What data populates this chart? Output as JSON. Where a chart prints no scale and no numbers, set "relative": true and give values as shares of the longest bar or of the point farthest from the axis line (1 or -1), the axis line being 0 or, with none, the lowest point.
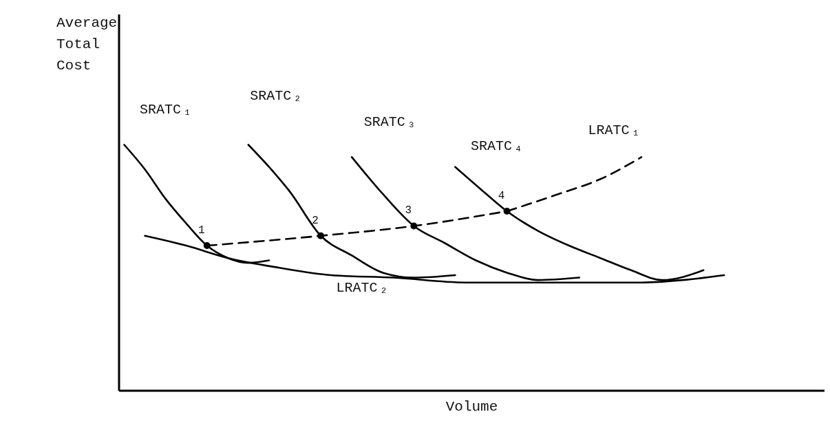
{
  "chart_data": {
    "type": "line",
    "relative": true,
    "xlabel": "Volume",
    "ylabel": "Average Total Cost",
    "grid": false,
    "legend": false,
    "marker": "none",
    "line_style": "solid",
    "categories": [
      null,
      null,
      null,
      null,
      null,
      null,
      null,
      null,
      null,
      null,
      null,
      null,
      null,
      null,
      null,
      null,
      null,
      null,
      null,
      null,
      null,
      null,
      null,
      null,
      null,
      null,
      null,
      null,
      null,
      null,
      null,
      null,
      null,
      null,
      null,
      null,
      null,
      null,
      null,
      null,
      null,
      null,
      null,
      null,
      null,
      null,
      null,
      null,
      null,
      null,
      null,
      null,
      null,
      null,
      null,
      null,
      null,
      null,
      null
    ],
    "series": [
      {
        "name": "SRATC₁",
        "color": "#000000",
        "values": [
          1.0,
          null,
          0.9,
          null,
          0.78,
          null,
          0.68,
          null,
          0.59,
          null,
          0.54,
          null,
          0.52,
          null,
          0.53,
          null,
          null,
          null,
          null,
          null,
          null,
          null,
          null,
          null,
          null,
          null,
          null,
          null,
          null,
          null,
          null,
          null,
          null,
          null,
          null,
          null,
          null,
          null,
          null,
          null,
          null,
          null,
          null,
          null,
          null,
          null,
          null,
          null,
          null,
          null,
          null,
          null,
          null,
          null,
          null,
          null,
          null,
          null,
          null
        ]
      },
      {
        "name": "SRATC₂",
        "color": "#000000",
        "values": [
          null,
          null,
          null,
          null,
          null,
          null,
          null,
          null,
          null,
          null,
          null,
          null,
          1.0,
          null,
          0.91,
          null,
          0.81,
          null,
          null,
          0.63,
          null,
          null,
          0.55,
          null,
          null,
          0.48,
          null,
          null,
          0.46,
          null,
          null,
          null,
          0.47,
          null,
          null,
          null,
          null,
          null,
          null,
          null,
          null,
          null,
          null,
          null,
          null,
          null,
          null,
          null,
          null,
          null,
          null,
          null,
          null,
          null,
          null,
          null,
          null,
          null,
          null
        ]
      },
      {
        "name": "SRATC₃",
        "color": "#000000",
        "values": [
          null,
          null,
          null,
          null,
          null,
          null,
          null,
          null,
          null,
          null,
          null,
          null,
          null,
          null,
          null,
          null,
          null,
          null,
          null,
          null,
          null,
          null,
          0.95,
          null,
          null,
          0.8,
          null,
          null,
          0.67,
          null,
          null,
          0.6,
          null,
          null,
          0.53,
          null,
          null,
          0.48,
          null,
          null,
          0.45,
          null,
          null,
          null,
          0.46,
          null,
          null,
          null,
          null,
          null,
          null,
          null,
          null,
          null,
          null,
          null,
          null,
          null,
          null
        ]
      },
      {
        "name": "SRATC₄",
        "color": "#000000",
        "values": [
          null,
          null,
          null,
          null,
          null,
          null,
          null,
          null,
          null,
          null,
          null,
          null,
          null,
          null,
          null,
          null,
          null,
          null,
          null,
          null,
          null,
          null,
          null,
          null,
          null,
          null,
          null,
          null,
          null,
          null,
          null,
          null,
          0.91,
          null,
          null,
          0.8,
          null,
          0.73,
          null,
          null,
          0.65,
          null,
          null,
          0.59,
          null,
          null,
          0.54,
          null,
          null,
          0.49,
          null,
          null,
          0.45,
          null,
          null,
          null,
          0.49,
          null,
          null
        ]
      },
      {
        "name": "LRATC₁",
        "color": "#000000",
        "line_style": "dashed",
        "values": [
          null,
          null,
          null,
          null,
          null,
          null,
          null,
          null,
          null,
          null,
          null,
          null,
          null,
          null,
          null,
          null,
          null,
          null,
          null,
          null,
          null,
          null,
          null,
          null,
          null,
          null,
          null,
          null,
          null,
          null,
          null,
          null,
          null,
          null,
          null,
          null,
          null,
          0.73,
          null,
          null,
          null,
          null,
          0.8,
          null,
          null,
          null,
          0.86,
          null,
          null,
          null,
          0.95,
          null,
          null,
          null,
          null,
          null,
          null,
          null,
          null
        ]
      },
      {
        "name": "LRATC₂",
        "color": "#000000",
        "values": [
          null,
          null,
          0.63,
          null,
          null,
          null,
          0.59,
          null,
          null,
          null,
          0.54,
          null,
          null,
          null,
          null,
          0.5,
          null,
          null,
          null,
          null,
          0.47,
          null,
          null,
          null,
          null,
          null,
          0.46,
          null,
          null,
          null,
          null,
          null,
          null,
          0.44,
          null,
          null,
          null,
          null,
          null,
          null,
          null,
          null,
          0.44,
          null,
          null,
          null,
          null,
          null,
          null,
          null,
          0.44,
          null,
          null,
          null,
          0.45,
          null,
          null,
          null,
          0.47
        ]
      },
      {
        "color": "#000000",
        "line_style": "dashed",
        "marker": "circle",
        "values": [
          null,
          null,
          null,
          null,
          null,
          null,
          null,
          null,
          0.59,
          null,
          null,
          null,
          null,
          null,
          null,
          null,
          null,
          null,
          null,
          0.63,
          null,
          null,
          null,
          null,
          null,
          null,
          null,
          null,
          0.67,
          null,
          null,
          null,
          null,
          null,
          null,
          null,
          null,
          0.73,
          null,
          null,
          null,
          null,
          null,
          null,
          null,
          null,
          null,
          null,
          null,
          null,
          null,
          null,
          null,
          null,
          null,
          null,
          null,
          null,
          null
        ]
      }
    ],
    "annotations": [
      "1",
      "2",
      "3",
      "4"
    ]
  }
}
